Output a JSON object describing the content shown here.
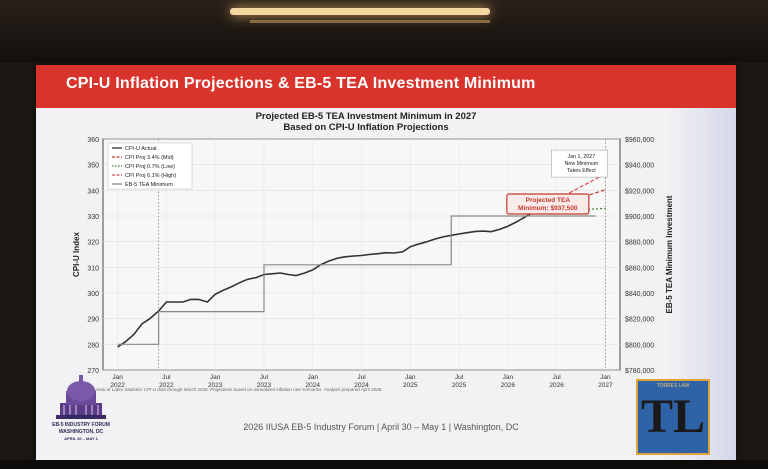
{
  "slide": {
    "title": "CPI-U Inflation Projections & EB-5 TEA Investment Minimum",
    "footer": "2026 IIUSA EB-5 Industry Forum | April 30 – May 1 | Washington, DC",
    "source_note": "Bureau of Labor Statistics CPI-U data through March 2026. Projections based on annualized inflation rate scenarios. Analysis prepared April 2026.",
    "logo_text": {
      "line1": "2026 IIUSA",
      "line2": "EB-5 INDUSTRY FORUM",
      "line3": "WASHINGTON, DC",
      "line4": "APRIL 30 – MAY 1"
    },
    "brand_letters": "TL",
    "brand_top": "TORRES LAW"
  },
  "chart_data": {
    "type": "line",
    "title": "Projected EB-5 TEA Investment Minimum in 2027",
    "subtitle": "Based on CPI-U Inflation Projections",
    "ylabel": "CPI-U Index",
    "y2label": "EB-5 TEA Minimum Investment",
    "ylim": [
      270,
      360
    ],
    "y2lim": [
      780000,
      960000
    ],
    "yticks": [
      270,
      280,
      290,
      300,
      310,
      320,
      330,
      340,
      350,
      360
    ],
    "y2ticks": [
      "$780,000",
      "$800,000",
      "$820,000",
      "$840,000",
      "$860,000",
      "$880,000",
      "$900,000",
      "$920,000",
      "$940,000",
      "$960,000"
    ],
    "xticks": [
      {
        "x": 2022.0,
        "top": "Jan",
        "bottom": "2022"
      },
      {
        "x": 2022.5,
        "top": "Jul",
        "bottom": "2022"
      },
      {
        "x": 2023.0,
        "top": "Jan",
        "bottom": "2023"
      },
      {
        "x": 2023.5,
        "top": "Jul",
        "bottom": "2023"
      },
      {
        "x": 2024.0,
        "top": "Jan",
        "bottom": "2024"
      },
      {
        "x": 2024.5,
        "top": "Jul",
        "bottom": "2024"
      },
      {
        "x": 2025.0,
        "top": "Jan",
        "bottom": "2025"
      },
      {
        "x": 2025.5,
        "top": "Jul",
        "bottom": "2025"
      },
      {
        "x": 2026.0,
        "top": "Jan",
        "bottom": "2026"
      },
      {
        "x": 2026.5,
        "top": "Jul",
        "bottom": "2026"
      },
      {
        "x": 2027.0,
        "top": "Jan",
        "bottom": "2027"
      }
    ],
    "xlim": [
      2021.85,
      2027.15
    ],
    "legend": [
      "CPI-U Actual",
      "CPI Proj 3.4% (Mid)",
      "CPI Proj 0.7% (Low)",
      "CPI Proj 6.1% (High)",
      "EB-5 TEA Minimum"
    ],
    "legend_position": "top-left",
    "series": [
      {
        "name": "CPI-U Actual",
        "color": "#333333",
        "x": [
          2022.0,
          2022.08,
          2022.17,
          2022.25,
          2022.33,
          2022.42,
          2022.5,
          2022.58,
          2022.67,
          2022.75,
          2022.83,
          2022.92,
          2023.0,
          2023.08,
          2023.17,
          2023.25,
          2023.33,
          2023.42,
          2023.5,
          2023.58,
          2023.67,
          2023.75,
          2023.83,
          2023.92,
          2024.0,
          2024.08,
          2024.17,
          2024.25,
          2024.33,
          2024.42,
          2024.5,
          2024.58,
          2024.67,
          2024.75,
          2024.83,
          2024.92,
          2025.0,
          2025.08,
          2025.17,
          2025.25,
          2025.33,
          2025.42,
          2025.5,
          2025.58,
          2025.67,
          2025.75,
          2025.83,
          2025.92,
          2026.0,
          2026.08,
          2026.17,
          2026.25
        ],
        "y": [
          279,
          281,
          284,
          288,
          290,
          293,
          296.5,
          296.5,
          296.5,
          297.5,
          297.5,
          296.5,
          299.5,
          301,
          302.5,
          304,
          305.3,
          306,
          307.2,
          307.5,
          307.8,
          307.2,
          306.8,
          307.8,
          309,
          311,
          312.5,
          313.5,
          314.1,
          314.4,
          314.6,
          315,
          315.3,
          315.7,
          315.6,
          316,
          318,
          319,
          320,
          321,
          321.8,
          322.5,
          323,
          323.5,
          324,
          324.1,
          323.9,
          324.8,
          326,
          327.5,
          329.5,
          331.2
        ]
      },
      {
        "name": "CPI Proj 3.4% (Mid)",
        "color": "#c0392b",
        "x": [
          2026.25,
          2027.0
        ],
        "y": [
          331.2,
          340.2
        ]
      },
      {
        "name": "CPI Proj 0.7% (Low)",
        "color": "#4a7a3a",
        "x": [
          2026.25,
          2027.0
        ],
        "y": [
          331.2,
          333.0
        ]
      },
      {
        "name": "CPI Proj 6.1% (High)",
        "color": "#d94a4a",
        "x": [
          2026.25,
          2027.0
        ],
        "y": [
          331.2,
          346.5
        ]
      },
      {
        "name": "EB-5 TEA Minimum",
        "color": "#888888",
        "axis": "y2",
        "x": [
          2022.0,
          2022.42,
          2022.42,
          2023.5,
          2023.5,
          2025.42,
          2025.42,
          2026.9
        ],
        "y": [
          800000,
          800000,
          825500,
          825500,
          862000,
          862000,
          900000,
          900000
        ]
      }
    ],
    "annotations": [
      {
        "text": "Jan 1, 2027\nNew Minimum\nTakes Effect",
        "x": 2027.0,
        "y": 351
      },
      {
        "text": "Projected TEA\nMinimum: $937,500",
        "x": 2026.4,
        "y": 337
      }
    ],
    "grid": true
  }
}
